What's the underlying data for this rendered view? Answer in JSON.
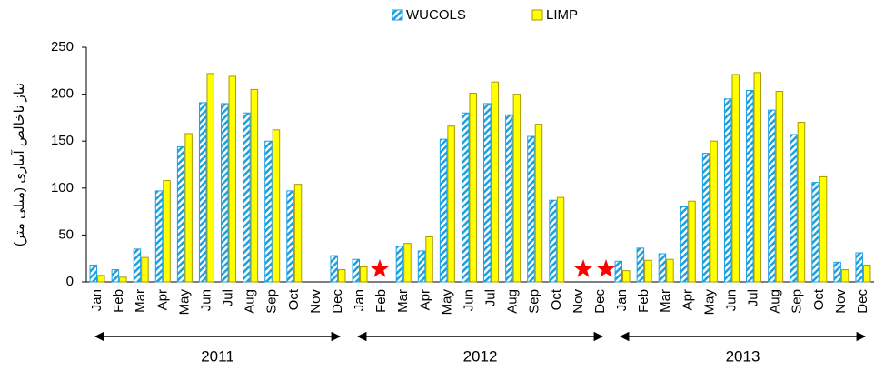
{
  "chart_data": {
    "type": "bar",
    "y_label": "نیاز ناخالص آبیاری (میلی متر)",
    "categories": [
      "Jan",
      "Feb",
      "Mar",
      "Apr",
      "May",
      "Jun",
      "Jul",
      "Aug",
      "Sep",
      "Oct",
      "Nov",
      "Dec",
      "Jan",
      "Feb",
      "Mar",
      "Apr",
      "May",
      "Jun",
      "Jul",
      "Aug",
      "Sep",
      "Oct",
      "Nov",
      "Dec",
      "Jan",
      "Feb",
      "Mar",
      "Apr",
      "May",
      "Jun",
      "Jul",
      "Aug",
      "Sep",
      "Oct",
      "Nov",
      "Dec"
    ],
    "year_groups": [
      "2011",
      "2012",
      "2013"
    ],
    "series": [
      {
        "name": "WUCOLS",
        "color": "#1ba1e2",
        "hatch": true,
        "values": [
          18,
          13,
          35,
          97,
          144,
          191,
          190,
          180,
          150,
          97,
          null,
          28,
          24,
          null,
          38,
          33,
          152,
          180,
          190,
          178,
          155,
          87,
          null,
          null,
          22,
          36,
          30,
          80,
          137,
          195,
          204,
          183,
          157,
          106,
          21,
          31
        ]
      },
      {
        "name": "LIMP",
        "color": "#ffff00",
        "hatch": false,
        "values": [
          7,
          5,
          26,
          108,
          158,
          222,
          219,
          205,
          162,
          104,
          null,
          13,
          16,
          null,
          41,
          48,
          166,
          201,
          213,
          200,
          168,
          90,
          null,
          null,
          12,
          23,
          24,
          86,
          150,
          221,
          223,
          203,
          170,
          112,
          13,
          18
        ]
      }
    ],
    "ylim": [
      0,
      250
    ],
    "yticks": [
      0,
      50,
      100,
      150,
      200,
      250
    ],
    "grid": false
  }
}
